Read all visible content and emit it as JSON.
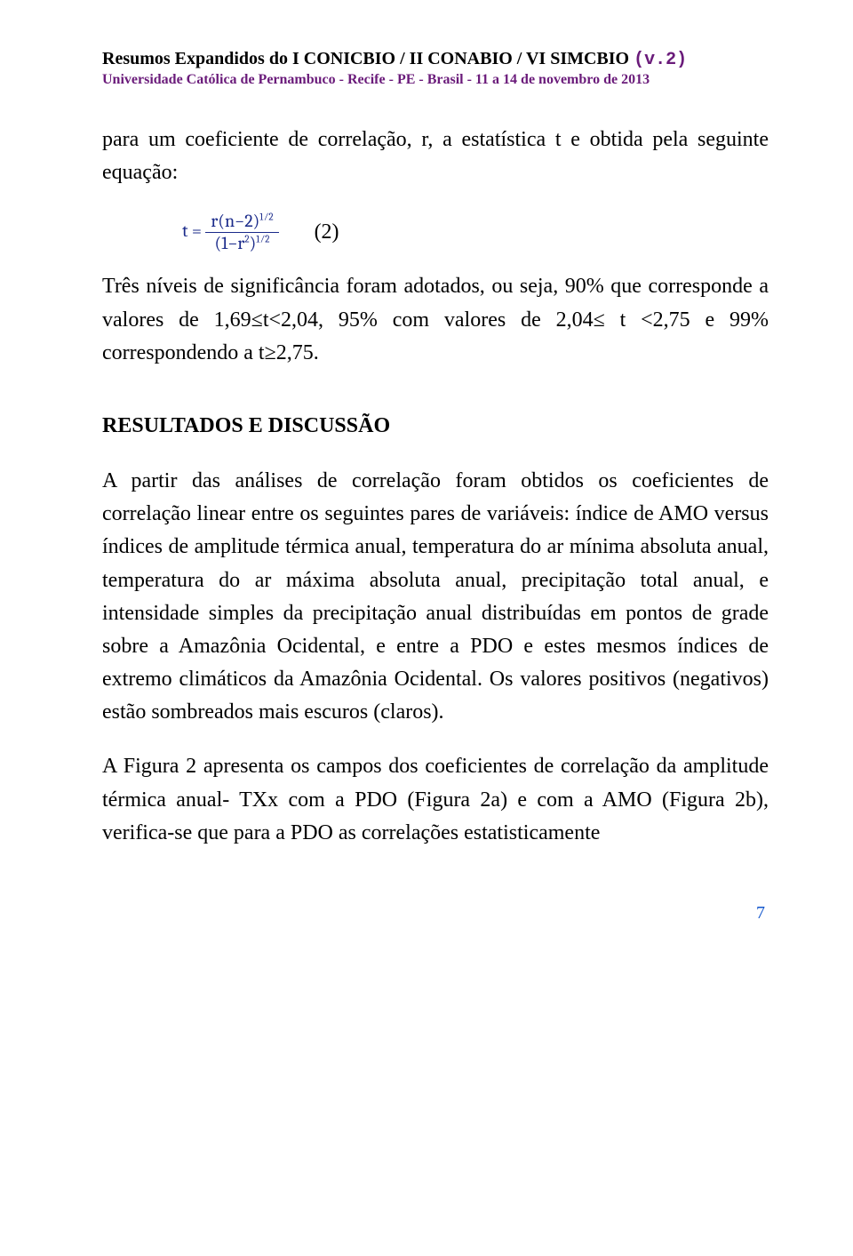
{
  "header": {
    "title_black": "Resumos Expandidos do I CONICBIO / II CONABIO / VI SIMCBIO ",
    "title_suffix": "(v.2)",
    "subtitle": "Universidade Católica de Pernambuco - Recife - PE - Brasil - 11 a 14 de novembro de 2013"
  },
  "body": {
    "para1": "para um coeficiente de correlação, r, a estatística t e obtida pela seguinte equação:",
    "equation": {
      "lhs": "t =",
      "numerator_a": "r(n−2)",
      "numerator_exp": "1⁄2",
      "denominator_a": "(1−r",
      "denominator_exp1": "2",
      "denominator_b": ")",
      "denominator_exp2": "1⁄2",
      "number": "(2)"
    },
    "para2": "Três níveis de significância foram adotados, ou seja, 90% que corresponde a valores de 1,69≤t<2,04, 95% com valores de 2,04≤ t <2,75 e 99% correspondendo a t≥2,75."
  },
  "section": {
    "heading": "RESULTADOS E DISCUSSÃO",
    "para1": "A partir das análises de correlação foram obtidos os coeficientes de correlação linear entre os seguintes pares de variáveis: índice de AMO versus índices de amplitude térmica anual, temperatura do ar mínima absoluta anual, temperatura do ar máxima absoluta anual, precipitação total anual, e intensidade simples da precipitação anual distribuídas em pontos de grade sobre a Amazônia Ocidental, e entre a PDO e estes mesmos índices de extremo climáticos da Amazônia Ocidental. Os valores positivos (negativos) estão sombreados mais escuros (claros).",
    "para2": "A Figura 2 apresenta os campos dos coeficientes de correlação da amplitude térmica anual- TXx com a PDO (Figura 2a) e com a AMO (Figura 2b), verifica-se que para a PDO as correlações estatisticamente"
  },
  "page_number": "7"
}
